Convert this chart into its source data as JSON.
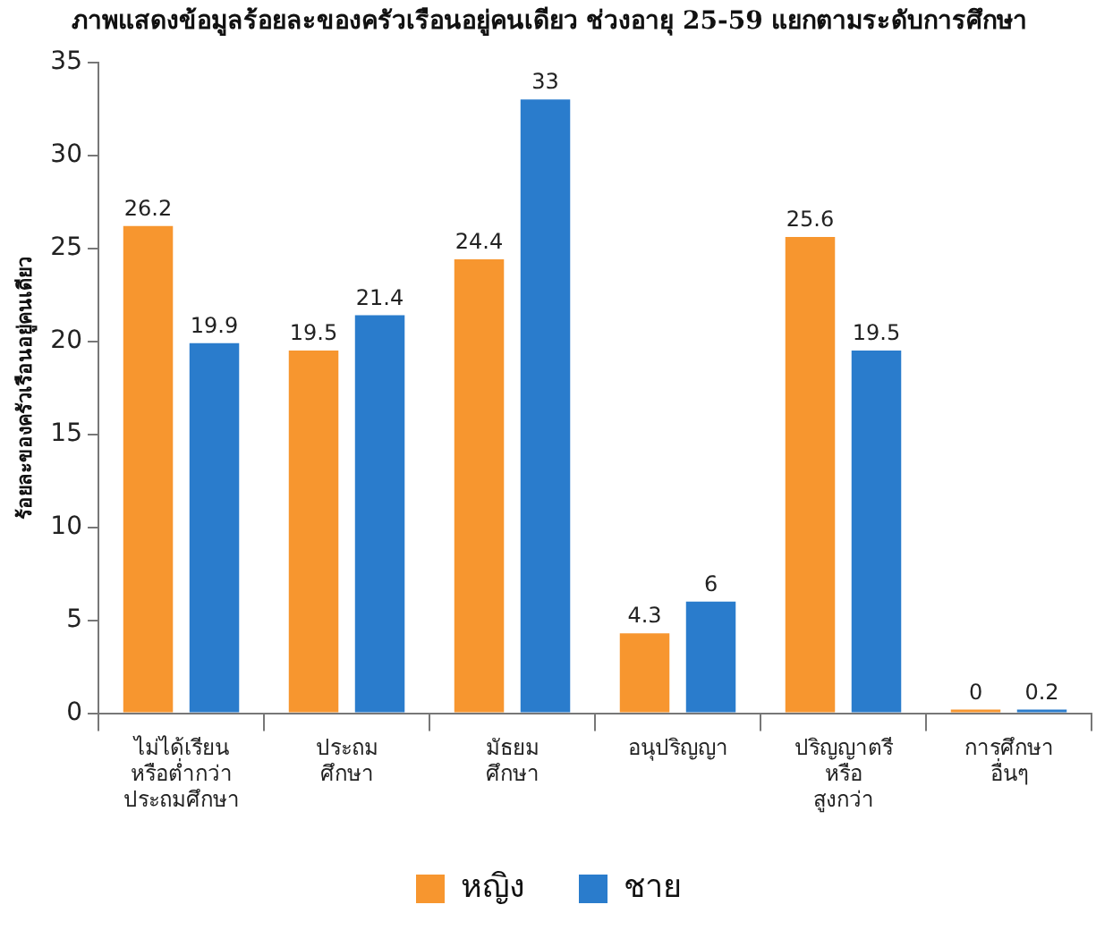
{
  "chart_data": {
    "type": "bar",
    "title": "ภาพแสดงข้อมูลร้อยละของครัวเรือนอยู่คนเดียว ช่วงอายุ 25-59 แยกตามระดับการศึกษา",
    "ylabel": "ร้อยละของครัวเรือนอยู่คนเดียว",
    "categories": [
      "ไม่ได้เรียน\nหรือต่ำกว่า\nประถมศึกษา",
      "ประถม\nศึกษา",
      "มัธยม\nศึกษา",
      "อนุปริญญา",
      "ปริญญาตรี\nหรือ\nสูงกว่า",
      "การศึกษา\nอื่นๆ"
    ],
    "series": [
      {
        "name": "หญิง",
        "color": "#f7962f",
        "values": [
          26.2,
          19.5,
          24.4,
          4.3,
          25.6,
          0
        ]
      },
      {
        "name": "ชาย",
        "color": "#2a7ccc",
        "values": [
          19.9,
          21.4,
          33,
          6,
          19.5,
          0.2
        ]
      }
    ],
    "ylim": [
      0,
      35
    ],
    "yticks": [
      0,
      5,
      10,
      15,
      20,
      25,
      30,
      35
    ],
    "grid": false,
    "legend": "bottom",
    "data_labels": true
  }
}
